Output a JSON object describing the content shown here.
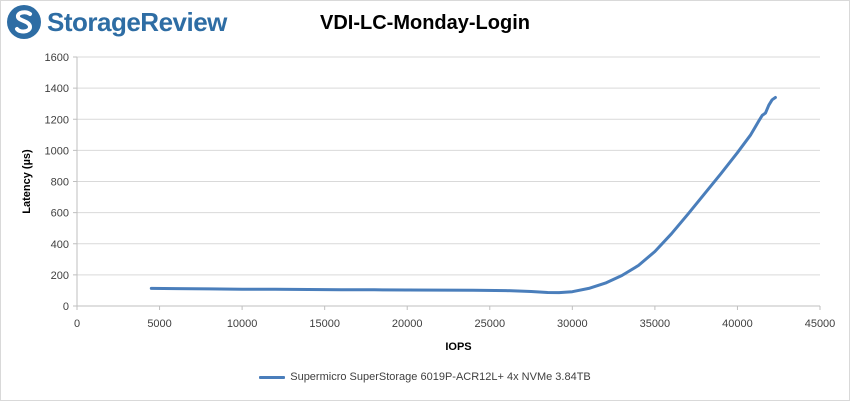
{
  "brand": {
    "name": "StorageReview",
    "logo_icon": "storagereview-logo-icon",
    "color": "#2e6da4"
  },
  "chart_data": {
    "type": "line",
    "title": "VDI-LC-Monday-Login",
    "xlabel": "IOPS",
    "ylabel": "Latency (µs)",
    "xlim": [
      0,
      45000
    ],
    "ylim": [
      0,
      1600
    ],
    "x_ticks": [
      0,
      5000,
      10000,
      15000,
      20000,
      25000,
      30000,
      35000,
      40000,
      45000
    ],
    "y_ticks": [
      0,
      200,
      400,
      600,
      800,
      1000,
      1200,
      1400,
      1600
    ],
    "grid": "horizontal",
    "legend_position": "bottom",
    "series": [
      {
        "name": "Supermicro SuperStorage 6019P-ACR12L+ 4x NVMe 3.84TB",
        "color": "#4a7ebb",
        "points": [
          [
            4500,
            113
          ],
          [
            6000,
            112
          ],
          [
            8000,
            110
          ],
          [
            10000,
            108
          ],
          [
            12000,
            107
          ],
          [
            14000,
            106
          ],
          [
            16000,
            105
          ],
          [
            18000,
            104
          ],
          [
            20000,
            103
          ],
          [
            22000,
            102
          ],
          [
            24000,
            101
          ],
          [
            26000,
            99
          ],
          [
            27500,
            93
          ],
          [
            28500,
            87
          ],
          [
            29200,
            86
          ],
          [
            30000,
            92
          ],
          [
            31000,
            113
          ],
          [
            32000,
            147
          ],
          [
            33000,
            196
          ],
          [
            34000,
            260
          ],
          [
            35000,
            350
          ],
          [
            36000,
            464
          ],
          [
            37000,
            590
          ],
          [
            38000,
            720
          ],
          [
            39000,
            850
          ],
          [
            40000,
            985
          ],
          [
            40800,
            1100
          ],
          [
            41300,
            1190
          ],
          [
            41500,
            1225
          ],
          [
            41700,
            1240
          ],
          [
            41900,
            1290
          ],
          [
            42100,
            1325
          ],
          [
            42300,
            1340
          ]
        ]
      }
    ]
  }
}
